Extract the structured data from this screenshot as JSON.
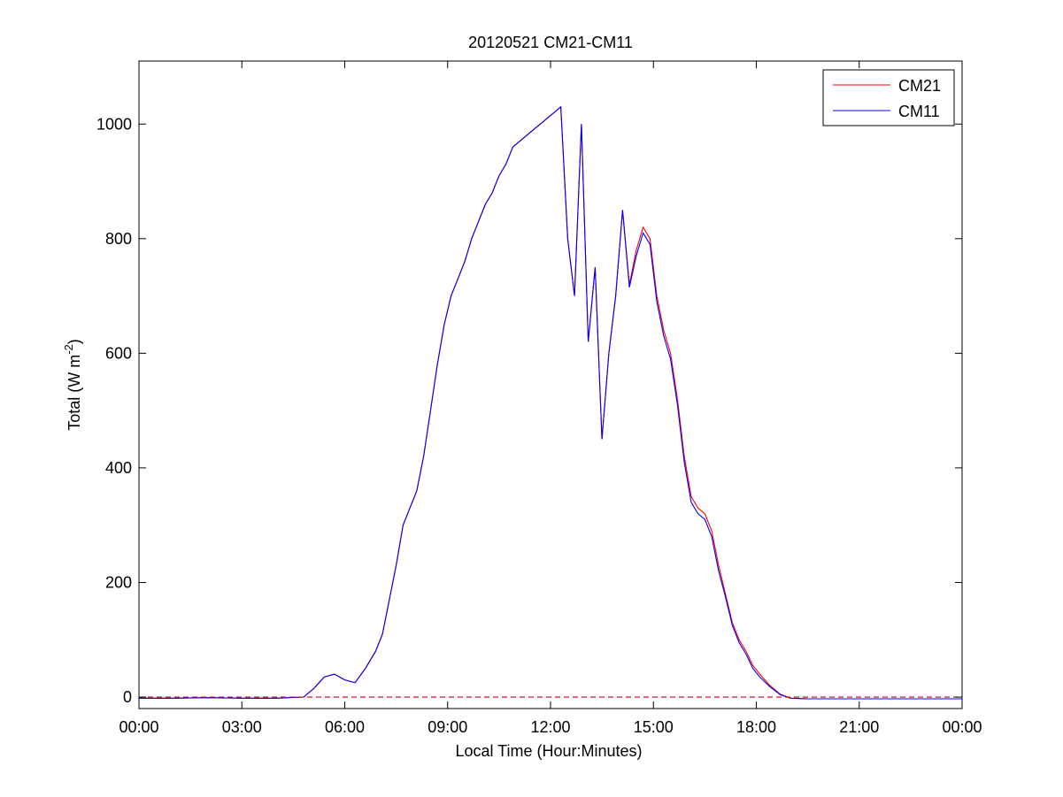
{
  "chart_data": {
    "type": "line",
    "title": "20120521 CM21-CM11",
    "xlabel": "Local Time (Hour:Minutes)",
    "ylabel_main": "Total (W m",
    "ylabel_sup": "-2",
    "ylabel_close": ")",
    "xlim": [
      0,
      24
    ],
    "ylim": [
      -20,
      1110
    ],
    "xticks": [
      0,
      3,
      6,
      9,
      12,
      15,
      18,
      21,
      24
    ],
    "xtick_labels": [
      "00:00",
      "03:00",
      "06:00",
      "09:00",
      "12:00",
      "15:00",
      "18:00",
      "21:00",
      "00:00"
    ],
    "yticks": [
      0,
      200,
      400,
      600,
      800,
      1000
    ],
    "ytick_labels": [
      "0",
      "200",
      "400",
      "600",
      "800",
      "1000"
    ],
    "grid": false,
    "legend_position": "top-right",
    "baseline": {
      "y": 0,
      "style": "dashed",
      "color": "#cc0000"
    },
    "series": [
      {
        "name": "CM21",
        "color": "#ff0000",
        "x": [
          0,
          1,
          2,
          3,
          4,
          4.8,
          5.1,
          5.4,
          5.7,
          6.0,
          6.3,
          6.6,
          6.9,
          7.1,
          7.3,
          7.5,
          7.7,
          7.9,
          8.1,
          8.3,
          8.5,
          8.7,
          8.9,
          9.1,
          9.3,
          9.5,
          9.7,
          9.9,
          10.1,
          10.3,
          10.5,
          10.7,
          10.9,
          11.1,
          11.3,
          11.5,
          11.7,
          11.9,
          12.1,
          12.3,
          12.5,
          12.7,
          12.9,
          13.1,
          13.3,
          13.5,
          13.7,
          13.9,
          14.1,
          14.3,
          14.5,
          14.7,
          14.9,
          15.1,
          15.3,
          15.5,
          15.7,
          15.9,
          16.1,
          16.3,
          16.5,
          16.7,
          16.9,
          17.1,
          17.3,
          17.5,
          17.7,
          17.9,
          18.1,
          18.4,
          18.7,
          19.0,
          19.5,
          20,
          21,
          22,
          23,
          24
        ],
        "y": [
          -2,
          -2,
          -1,
          -2,
          -2,
          0,
          15,
          35,
          40,
          30,
          25,
          50,
          80,
          110,
          170,
          230,
          300,
          330,
          360,
          420,
          500,
          580,
          650,
          700,
          730,
          760,
          800,
          830,
          860,
          880,
          910,
          930,
          960,
          970,
          980,
          990,
          1000,
          1010,
          1020,
          1030,
          800,
          700,
          1000,
          620,
          750,
          450,
          600,
          700,
          850,
          720,
          780,
          820,
          800,
          700,
          640,
          600,
          520,
          420,
          350,
          330,
          320,
          290,
          230,
          180,
          130,
          100,
          80,
          55,
          40,
          20,
          5,
          -2,
          -3,
          -3,
          -3,
          -3,
          -3,
          -3
        ]
      },
      {
        "name": "CM11",
        "color": "#0000ff",
        "x": [
          0,
          1,
          2,
          3,
          4,
          4.8,
          5.1,
          5.4,
          5.7,
          6.0,
          6.3,
          6.6,
          6.9,
          7.1,
          7.3,
          7.5,
          7.7,
          7.9,
          8.1,
          8.3,
          8.5,
          8.7,
          8.9,
          9.1,
          9.3,
          9.5,
          9.7,
          9.9,
          10.1,
          10.3,
          10.5,
          10.7,
          10.9,
          11.1,
          11.3,
          11.5,
          11.7,
          11.9,
          12.1,
          12.3,
          12.5,
          12.7,
          12.9,
          13.1,
          13.3,
          13.5,
          13.7,
          13.9,
          14.1,
          14.3,
          14.5,
          14.7,
          14.9,
          15.1,
          15.3,
          15.5,
          15.7,
          15.9,
          16.1,
          16.3,
          16.5,
          16.7,
          16.9,
          17.1,
          17.3,
          17.5,
          17.7,
          17.9,
          18.1,
          18.4,
          18.7,
          19.0,
          19.5,
          20,
          21,
          22,
          23,
          24
        ],
        "y": [
          -2,
          -2,
          -1,
          -2,
          -2,
          0,
          15,
          35,
          40,
          30,
          25,
          50,
          80,
          110,
          170,
          230,
          300,
          330,
          360,
          420,
          500,
          580,
          650,
          700,
          730,
          760,
          800,
          830,
          860,
          880,
          910,
          930,
          960,
          970,
          980,
          990,
          1000,
          1010,
          1020,
          1030,
          800,
          700,
          1000,
          620,
          750,
          450,
          600,
          700,
          850,
          715,
          770,
          810,
          790,
          690,
          630,
          590,
          510,
          410,
          340,
          320,
          310,
          280,
          220,
          175,
          125,
          95,
          75,
          50,
          35,
          18,
          4,
          -2,
          -3,
          -3,
          -3,
          -3,
          -3,
          -3
        ]
      }
    ]
  }
}
